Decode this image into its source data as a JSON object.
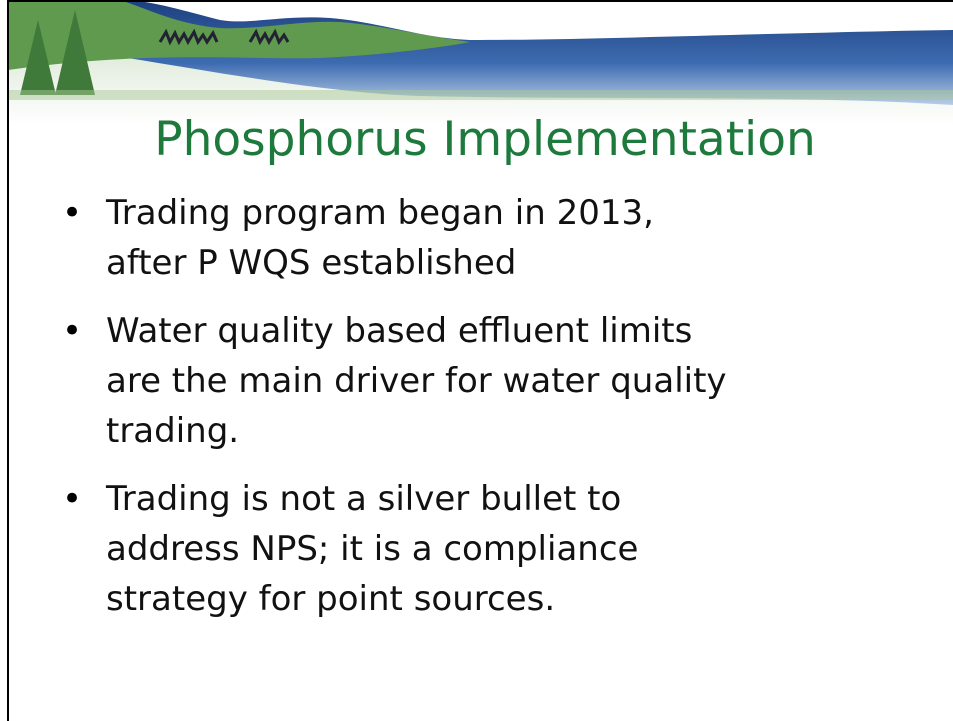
{
  "title": "Phosphorus Implementation",
  "bullets": [
    [
      "Trading program began in 2013,",
      "after P WQS established"
    ],
    [
      "Water quality based effluent limits",
      "are the main driver for water quality",
      "trading."
    ],
    [
      "Trading is not a silver bullet to",
      "address NPS; it is a compliance",
      "strategy for point sources."
    ]
  ]
}
